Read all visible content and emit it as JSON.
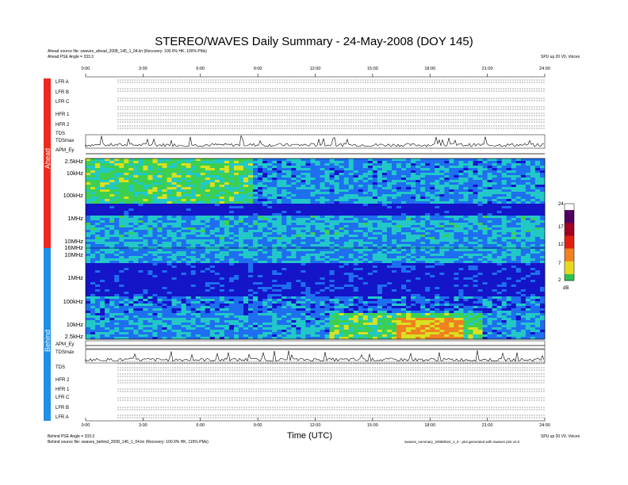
{
  "title": "STEREO/WAVES Daily Summary - 24-May-2008 (DOY 145)",
  "header": {
    "ahead_source": "Ahead source file: swaves_ahead_2008_145_1_04.lin (Recovery: 100.0% HK, 100% PMs)",
    "ahead_angle": "Ahead PSE Angle = 333.3",
    "right_note": "SPU up 20 V0, Voices"
  },
  "footer": {
    "behind_angle": "Behind PSE Angle = 333.3",
    "behind_source": "Behind source file: swaves_behind_2008_145_1_04.lin (Recovery: 100.0% HK, 115% PMs)",
    "right_note": "SPU up 20 V0, Voices",
    "right_note2": "swaves_summary_20080524_1_0 - plot generated with swaves plot v2.0"
  },
  "xaxis": {
    "label": "Time (UTC)",
    "ticks": [
      "0:00",
      "3:00",
      "6:00",
      "9:00",
      "12:00",
      "15:00",
      "18:00",
      "21:00",
      "24:00"
    ]
  },
  "ahead": {
    "side_label": "Ahead",
    "rows": [
      "LFR A",
      "LFR B",
      "LFR C",
      "HFR 1",
      "HFR 2",
      "TDS",
      "TDSmax",
      "APM_Ey"
    ],
    "freq_labels": [
      "2.5kHz",
      "10kHz",
      "100kHz",
      "1MHz",
      "10MHz"
    ]
  },
  "behind": {
    "side_label": "Behind",
    "rows": [
      "APM_Ey",
      "TDSmax",
      "TDS",
      "HFR 2",
      "HFR 1",
      "LFR C",
      "LFR B",
      "LFR A"
    ],
    "freq_labels": [
      "16MHz",
      "10MHz",
      "1MHz",
      "100kHz",
      "10kHz",
      "2.5kHz"
    ]
  },
  "colorbar": {
    "ticks": [
      "24",
      "17",
      "12",
      "7",
      "2"
    ],
    "unit": "dB"
  },
  "colors": {
    "ahead_bar": "#ee2a1e",
    "behind_bar": "#1f8fe8",
    "spectrum_low": "#1b1bd0",
    "spectrum_mid": "#22c4c0",
    "spectrum_hi": "#e8e020"
  },
  "chart_data": {
    "type": "heatmap",
    "title": "STEREO/WAVES Daily Summary - 24-May-2008 (DOY 145)",
    "xlabel": "Time (UTC)",
    "xlim": [
      0,
      24
    ],
    "x_ticks": [
      "0:00",
      "3:00",
      "6:00",
      "9:00",
      "12:00",
      "15:00",
      "18:00",
      "21:00",
      "24:00"
    ],
    "panels": [
      {
        "name": "Ahead",
        "y_ticks": [
          "2.5kHz",
          "10kHz",
          "100kHz",
          "1MHz",
          "10MHz"
        ],
        "y_scale": "log"
      },
      {
        "name": "Behind",
        "y_ticks": [
          "16MHz",
          "10MHz",
          "1MHz",
          "100kHz",
          "10kHz",
          "2.5kHz"
        ],
        "y_scale": "log"
      }
    ],
    "color_scale": {
      "min": 2,
      "max": 24,
      "unit": "dB",
      "ticks": [
        24,
        17,
        12,
        7,
        2
      ]
    }
  }
}
